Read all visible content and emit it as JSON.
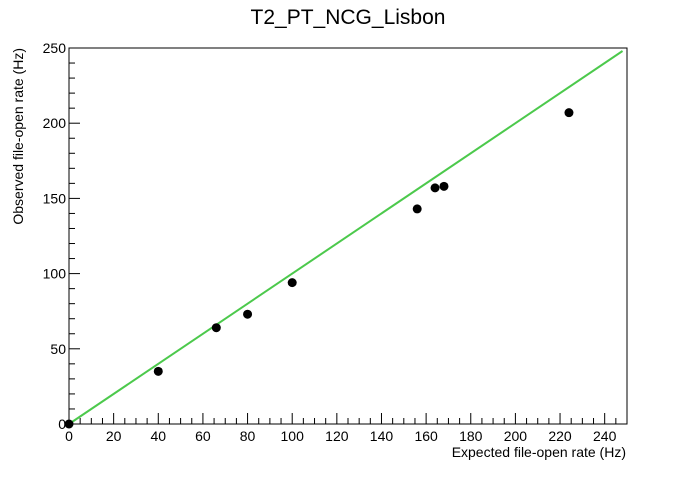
{
  "chart_data": {
    "type": "scatter",
    "title": "T2_PT_NCG_Lisbon",
    "xlabel": "Expected file-open rate (Hz)",
    "ylabel": "Observed file-open rate (Hz)",
    "xlim": [
      0,
      250
    ],
    "ylim": [
      0,
      250
    ],
    "x_ticks": [
      0,
      20,
      40,
      60,
      80,
      100,
      120,
      140,
      160,
      180,
      200,
      220,
      240
    ],
    "y_ticks": [
      0,
      50,
      100,
      150,
      200,
      250
    ],
    "grid": false,
    "series": [
      {
        "points": [
          {
            "x": 0,
            "y": 0
          },
          {
            "x": 40,
            "y": 35
          },
          {
            "x": 66,
            "y": 64
          },
          {
            "x": 80,
            "y": 73
          },
          {
            "x": 100,
            "y": 94
          },
          {
            "x": 156,
            "y": 143
          },
          {
            "x": 164,
            "y": 157
          },
          {
            "x": 168,
            "y": 158
          },
          {
            "x": 224,
            "y": 207
          }
        ],
        "color": "#000000"
      }
    ],
    "fit_line": {
      "x": [
        0,
        248
      ],
      "y": [
        0,
        248
      ],
      "color": "#4cc94c"
    }
  }
}
